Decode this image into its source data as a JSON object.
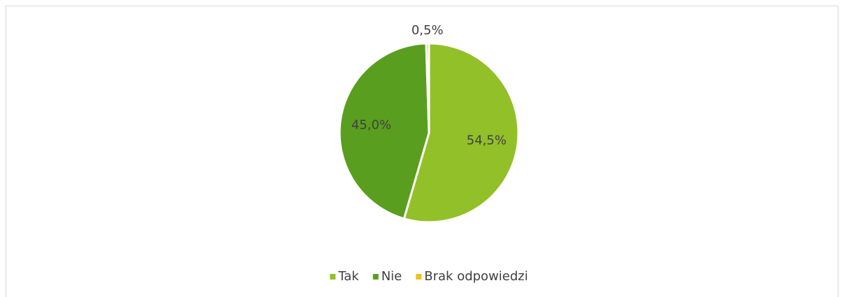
{
  "chart_data": {
    "type": "pie",
    "categories": [
      "Tak",
      "Nie",
      "Brak odpowiedzi"
    ],
    "values": [
      54.5,
      45.0,
      0.5
    ],
    "value_labels": [
      "54,5%",
      "45,0%",
      "0,5%"
    ],
    "colors": [
      "#92c028",
      "#5a9e1f",
      "#f0c020"
    ],
    "legend": "bottom"
  }
}
